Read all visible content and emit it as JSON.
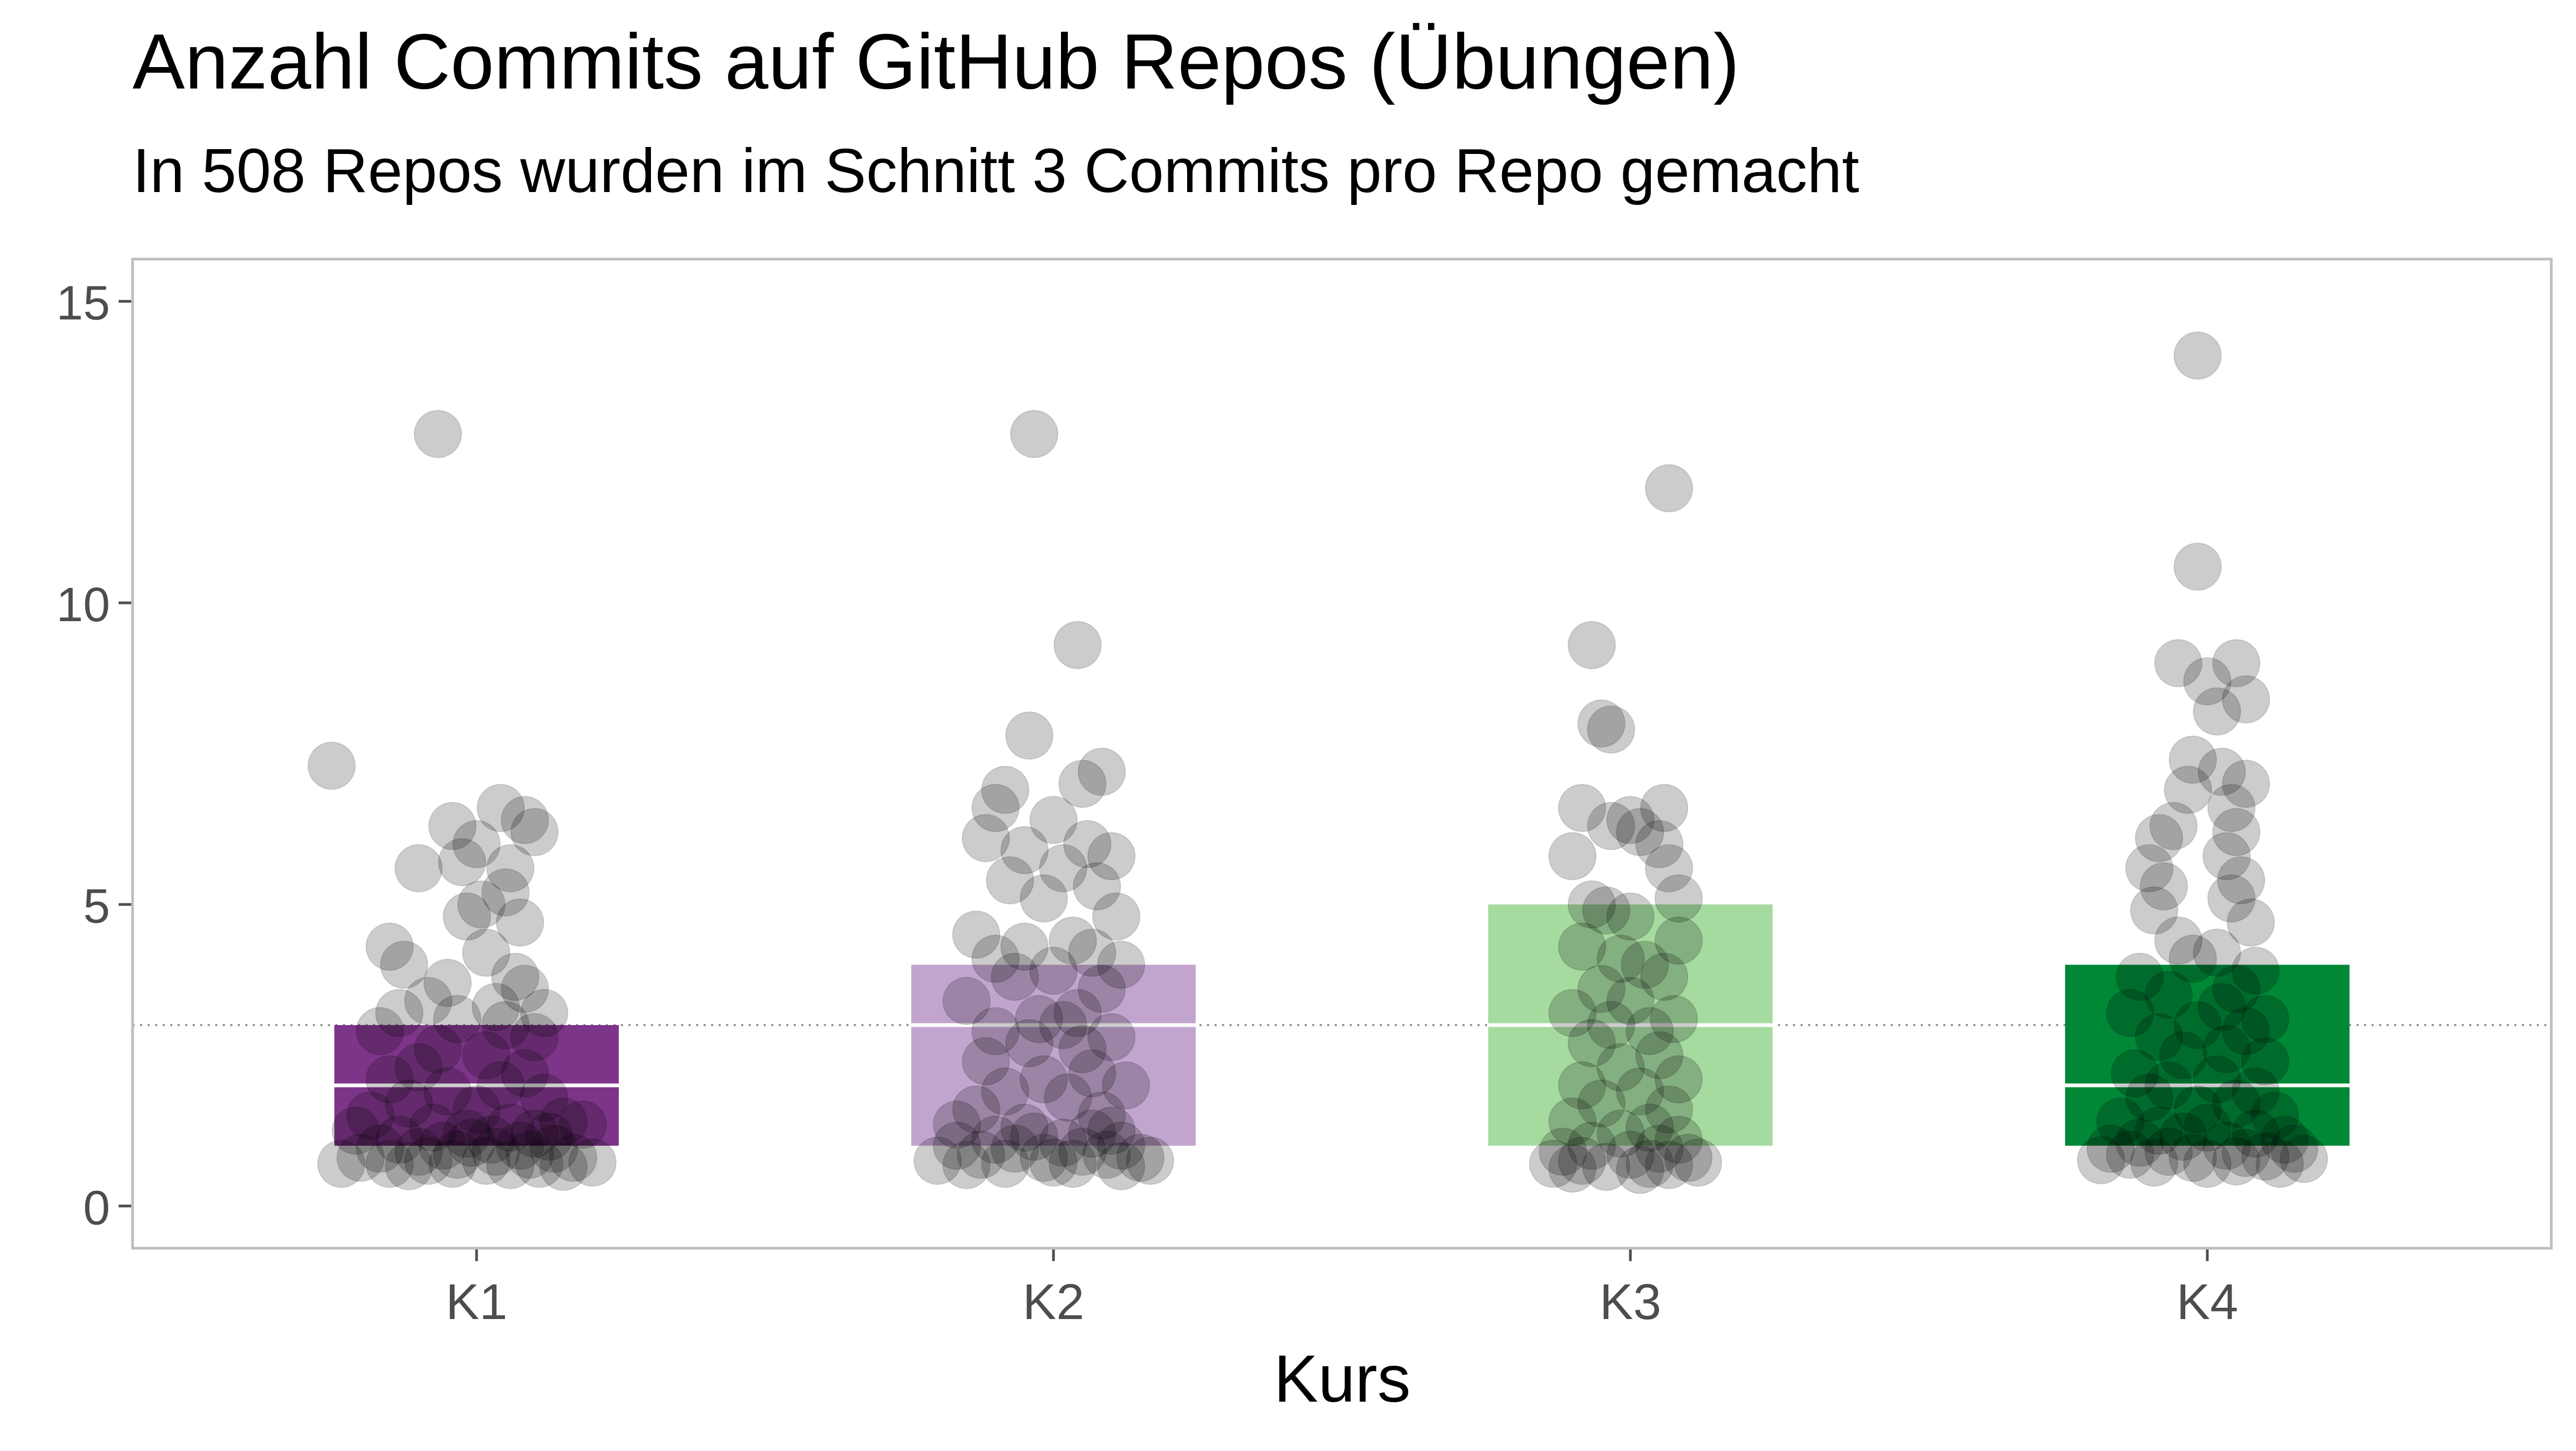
{
  "chart_data": {
    "type": "box",
    "title": "Anzahl Commits auf GitHub Repos (Übungen)",
    "subtitle": "In 508 Repos wurden im Schnitt 3 Commits pro Repo gemacht",
    "xlabel": "Kurs",
    "ylabel": "",
    "ylim": [
      -0.7,
      15.7
    ],
    "yticks": [
      0,
      5,
      10,
      15
    ],
    "grid": false,
    "reference_line": {
      "y": 3,
      "style": "dotted",
      "color": "#999999"
    },
    "categories": [
      "K1",
      "K2",
      "K3",
      "K4"
    ],
    "boxes": [
      {
        "category": "K1",
        "q1": 1,
        "median": 2,
        "q3": 3,
        "fill": "#762a83",
        "opacity": 0.95
      },
      {
        "category": "K2",
        "q1": 1,
        "median": 3,
        "q3": 4,
        "fill": "#c2a5cf",
        "opacity": 1.0
      },
      {
        "category": "K3",
        "q1": 1,
        "median": 3,
        "q3": 5,
        "fill": "#a6dba0",
        "opacity": 1.0
      },
      {
        "category": "K4",
        "q1": 1,
        "median": 2,
        "q3": 4,
        "fill": "#008837",
        "opacity": 1.0
      }
    ],
    "points": {
      "K1": [
        [
          -0.08,
          12.8
        ],
        [
          -0.3,
          7.3
        ],
        [
          0.05,
          6.6
        ],
        [
          -0.05,
          6.3
        ],
        [
          0.1,
          6.4
        ],
        [
          0.12,
          6.2
        ],
        [
          0.0,
          6.0
        ],
        [
          -0.03,
          5.7
        ],
        [
          0.07,
          5.6
        ],
        [
          -0.12,
          5.6
        ],
        [
          0.06,
          5.2
        ],
        [
          0.01,
          5.0
        ],
        [
          -0.02,
          4.8
        ],
        [
          0.09,
          4.7
        ],
        [
          -0.18,
          4.3
        ],
        [
          0.02,
          4.2
        ],
        [
          -0.15,
          4.0
        ],
        [
          0.08,
          3.8
        ],
        [
          -0.06,
          3.7
        ],
        [
          0.1,
          3.6
        ],
        [
          -0.1,
          3.4
        ],
        [
          0.04,
          3.3
        ],
        [
          -0.16,
          3.2
        ],
        [
          0.14,
          3.2
        ],
        [
          -0.04,
          3.1
        ],
        [
          0.06,
          3.0
        ],
        [
          -0.2,
          2.9
        ],
        [
          0.12,
          2.8
        ],
        [
          -0.08,
          2.6
        ],
        [
          0.02,
          2.5
        ],
        [
          -0.12,
          2.3
        ],
        [
          0.1,
          2.2
        ],
        [
          -0.18,
          2.1
        ],
        [
          0.05,
          2.0
        ],
        [
          -0.06,
          1.9
        ],
        [
          0.14,
          1.8
        ],
        [
          -0.14,
          1.7
        ],
        [
          0.0,
          1.6
        ],
        [
          -0.22,
          1.5
        ],
        [
          0.18,
          1.4
        ],
        [
          -0.09,
          1.3
        ],
        [
          0.07,
          1.3
        ],
        [
          -0.02,
          1.2
        ],
        [
          0.12,
          1.2
        ],
        [
          -0.16,
          1.1
        ],
        [
          0.03,
          1.1
        ],
        [
          -0.07,
          1.0
        ],
        [
          0.09,
          1.0
        ],
        [
          -0.2,
          0.95
        ],
        [
          0.16,
          0.95
        ],
        [
          -0.12,
          0.9
        ],
        [
          0.04,
          0.9
        ],
        [
          -0.04,
          0.85
        ],
        [
          0.11,
          0.85
        ],
        [
          -0.24,
          0.8
        ],
        [
          0.2,
          0.8
        ],
        [
          -0.1,
          0.75
        ],
        [
          0.02,
          0.75
        ],
        [
          -0.18,
          0.7
        ],
        [
          0.13,
          0.7
        ],
        [
          -0.05,
          0.7
        ],
        [
          0.07,
          0.68
        ],
        [
          -0.14,
          0.66
        ],
        [
          0.18,
          0.65
        ],
        [
          -0.28,
          0.7
        ],
        [
          0.24,
          0.72
        ],
        [
          -0.01,
          1.05
        ],
        [
          0.15,
          1.15
        ],
        [
          -0.25,
          1.25
        ],
        [
          0.22,
          1.35
        ]
      ],
      "K2": [
        [
          -0.04,
          12.8
        ],
        [
          0.05,
          9.3
        ],
        [
          -0.05,
          7.8
        ],
        [
          0.1,
          7.2
        ],
        [
          0.06,
          7.0
        ],
        [
          -0.1,
          6.9
        ],
        [
          -0.12,
          6.6
        ],
        [
          0.0,
          6.4
        ],
        [
          -0.14,
          6.1
        ],
        [
          0.07,
          6.0
        ],
        [
          -0.06,
          5.9
        ],
        [
          0.12,
          5.8
        ],
        [
          0.02,
          5.6
        ],
        [
          -0.09,
          5.4
        ],
        [
          0.09,
          5.3
        ],
        [
          -0.02,
          5.1
        ],
        [
          0.13,
          4.8
        ],
        [
          -0.16,
          4.5
        ],
        [
          0.04,
          4.4
        ],
        [
          -0.06,
          4.3
        ],
        [
          0.08,
          4.2
        ],
        [
          -0.12,
          4.1
        ],
        [
          0.14,
          4.0
        ],
        [
          0.0,
          3.9
        ],
        [
          -0.08,
          3.8
        ],
        [
          0.1,
          3.6
        ],
        [
          -0.18,
          3.4
        ],
        [
          0.05,
          3.2
        ],
        [
          -0.03,
          3.1
        ],
        [
          0.02,
          3.0
        ],
        [
          -0.12,
          2.9
        ],
        [
          0.12,
          2.8
        ],
        [
          -0.05,
          2.7
        ],
        [
          0.06,
          2.6
        ],
        [
          -0.14,
          2.4
        ],
        [
          0.08,
          2.2
        ],
        [
          -0.02,
          2.1
        ],
        [
          0.15,
          2.0
        ],
        [
          -0.1,
          1.9
        ],
        [
          0.03,
          1.8
        ],
        [
          -0.16,
          1.6
        ],
        [
          0.1,
          1.5
        ],
        [
          -0.06,
          1.3
        ],
        [
          0.08,
          1.2
        ],
        [
          -0.12,
          1.1
        ],
        [
          0.02,
          1.05
        ],
        [
          -0.2,
          1.0
        ],
        [
          0.14,
          1.0
        ],
        [
          -0.08,
          0.95
        ],
        [
          0.06,
          0.9
        ],
        [
          -0.15,
          0.85
        ],
        [
          0.11,
          0.85
        ],
        [
          -0.02,
          0.8
        ],
        [
          0.18,
          0.8
        ],
        [
          -0.24,
          0.75
        ],
        [
          0.2,
          0.75
        ],
        [
          -0.1,
          0.7
        ],
        [
          0.04,
          0.7
        ],
        [
          -0.18,
          0.68
        ],
        [
          0.14,
          0.66
        ],
        [
          0.0,
          0.72
        ],
        [
          -0.04,
          1.15
        ],
        [
          0.12,
          1.25
        ],
        [
          -0.2,
          1.35
        ]
      ],
      "K3": [
        [
          0.08,
          11.9
        ],
        [
          -0.08,
          9.3
        ],
        [
          -0.06,
          8.0
        ],
        [
          -0.04,
          7.9
        ],
        [
          -0.1,
          6.6
        ],
        [
          0.07,
          6.6
        ],
        [
          0.0,
          6.4
        ],
        [
          -0.04,
          6.3
        ],
        [
          0.02,
          6.2
        ],
        [
          0.06,
          6.0
        ],
        [
          -0.12,
          5.8
        ],
        [
          0.08,
          5.6
        ],
        [
          0.1,
          5.1
        ],
        [
          -0.08,
          5.0
        ],
        [
          -0.05,
          4.9
        ],
        [
          0.0,
          4.8
        ],
        [
          0.1,
          4.4
        ],
        [
          -0.1,
          4.3
        ],
        [
          -0.02,
          4.1
        ],
        [
          0.03,
          4.0
        ],
        [
          0.07,
          3.8
        ],
        [
          -0.06,
          3.6
        ],
        [
          0.0,
          3.4
        ],
        [
          -0.12,
          3.2
        ],
        [
          0.09,
          3.1
        ],
        [
          -0.04,
          3.0
        ],
        [
          0.04,
          2.9
        ],
        [
          -0.08,
          2.7
        ],
        [
          0.06,
          2.5
        ],
        [
          -0.02,
          2.3
        ],
        [
          0.1,
          2.1
        ],
        [
          -0.1,
          2.0
        ],
        [
          0.02,
          1.9
        ],
        [
          -0.06,
          1.7
        ],
        [
          0.08,
          1.6
        ],
        [
          -0.12,
          1.4
        ],
        [
          0.04,
          1.3
        ],
        [
          -0.02,
          1.2
        ],
        [
          0.1,
          1.1
        ],
        [
          -0.08,
          1.0
        ],
        [
          0.06,
          0.95
        ],
        [
          -0.14,
          0.9
        ],
        [
          0.0,
          0.85
        ],
        [
          0.12,
          0.8
        ],
        [
          -0.1,
          0.75
        ],
        [
          0.04,
          0.7
        ],
        [
          -0.05,
          0.65
        ],
        [
          0.08,
          0.68
        ],
        [
          -0.12,
          0.62
        ],
        [
          0.02,
          0.6
        ],
        [
          -0.16,
          0.7
        ],
        [
          0.14,
          0.72
        ]
      ],
      "K4": [
        [
          -0.02,
          14.1
        ],
        [
          -0.02,
          10.6
        ],
        [
          0.06,
          9.0
        ],
        [
          -0.06,
          9.0
        ],
        [
          0.0,
          8.7
        ],
        [
          0.08,
          8.4
        ],
        [
          0.02,
          8.2
        ],
        [
          -0.03,
          7.4
        ],
        [
          0.03,
          7.2
        ],
        [
          0.08,
          7.0
        ],
        [
          -0.04,
          6.9
        ],
        [
          0.05,
          6.6
        ],
        [
          -0.07,
          6.3
        ],
        [
          0.06,
          6.2
        ],
        [
          -0.1,
          6.1
        ],
        [
          0.04,
          5.8
        ],
        [
          -0.12,
          5.6
        ],
        [
          0.07,
          5.4
        ],
        [
          -0.09,
          5.3
        ],
        [
          0.05,
          5.1
        ],
        [
          -0.11,
          4.9
        ],
        [
          0.09,
          4.7
        ],
        [
          -0.06,
          4.4
        ],
        [
          0.02,
          4.2
        ],
        [
          -0.03,
          4.1
        ],
        [
          0.1,
          3.9
        ],
        [
          -0.14,
          3.8
        ],
        [
          0.06,
          3.6
        ],
        [
          -0.08,
          3.5
        ],
        [
          0.03,
          3.3
        ],
        [
          -0.16,
          3.2
        ],
        [
          0.12,
          3.1
        ],
        [
          -0.02,
          3.0
        ],
        [
          0.08,
          2.9
        ],
        [
          -0.1,
          2.8
        ],
        [
          0.04,
          2.6
        ],
        [
          -0.05,
          2.5
        ],
        [
          0.12,
          2.4
        ],
        [
          -0.15,
          2.2
        ],
        [
          0.02,
          2.1
        ],
        [
          -0.08,
          2.0
        ],
        [
          0.1,
          1.9
        ],
        [
          -0.12,
          1.8
        ],
        [
          0.06,
          1.7
        ],
        [
          -0.02,
          1.6
        ],
        [
          0.14,
          1.5
        ],
        [
          -0.18,
          1.4
        ],
        [
          0.0,
          1.3
        ],
        [
          -0.1,
          1.25
        ],
        [
          0.1,
          1.2
        ],
        [
          -0.05,
          1.15
        ],
        [
          0.16,
          1.1
        ],
        [
          -0.14,
          1.05
        ],
        [
          0.04,
          1.0
        ],
        [
          -0.2,
          0.95
        ],
        [
          0.18,
          0.95
        ],
        [
          -0.08,
          0.9
        ],
        [
          0.08,
          0.88
        ],
        [
          -0.16,
          0.85
        ],
        [
          0.12,
          0.82
        ],
        [
          -0.03,
          0.8
        ],
        [
          0.2,
          0.78
        ],
        [
          -0.22,
          0.76
        ],
        [
          0.06,
          0.74
        ],
        [
          -0.11,
          0.72
        ],
        [
          0.15,
          0.7
        ],
        [
          0.0,
          0.7
        ]
      ]
    }
  }
}
